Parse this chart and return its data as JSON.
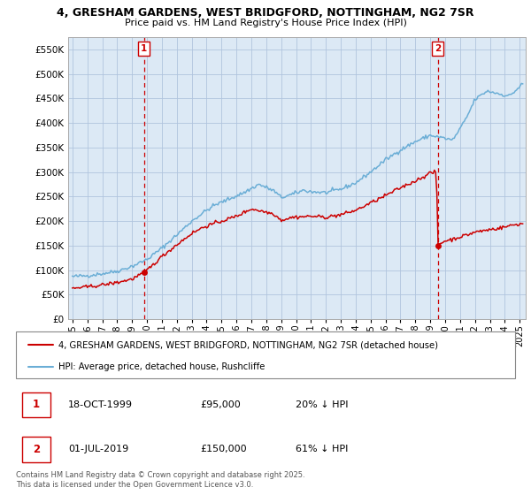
{
  "title1": "4, GRESHAM GARDENS, WEST BRIDGFORD, NOTTINGHAM, NG2 7SR",
  "title2": "Price paid vs. HM Land Registry's House Price Index (HPI)",
  "legend_line1": "4, GRESHAM GARDENS, WEST BRIDGFORD, NOTTINGHAM, NG2 7SR (detached house)",
  "legend_line2": "HPI: Average price, detached house, Rushcliffe",
  "annotation1_date": "18-OCT-1999",
  "annotation1_price": "£95,000",
  "annotation1_hpi": "20% ↓ HPI",
  "annotation2_date": "01-JUL-2019",
  "annotation2_price": "£150,000",
  "annotation2_hpi": "61% ↓ HPI",
  "copyright": "Contains HM Land Registry data © Crown copyright and database right 2025.\nThis data is licensed under the Open Government Licence v3.0.",
  "hpi_color": "#6baed6",
  "price_color": "#cc0000",
  "annotation_color": "#cc0000",
  "plot_bg_color": "#dce9f5",
  "grid_color": "#b0c4de",
  "ylim": [
    0,
    575000
  ],
  "yticks": [
    0,
    50000,
    100000,
    150000,
    200000,
    250000,
    300000,
    350000,
    400000,
    450000,
    500000,
    550000
  ],
  "sale1_x": 1999.79,
  "sale1_y": 95000,
  "sale2_x": 2019.5,
  "sale2_y": 150000,
  "xmin": 1994.7,
  "xmax": 2025.4
}
